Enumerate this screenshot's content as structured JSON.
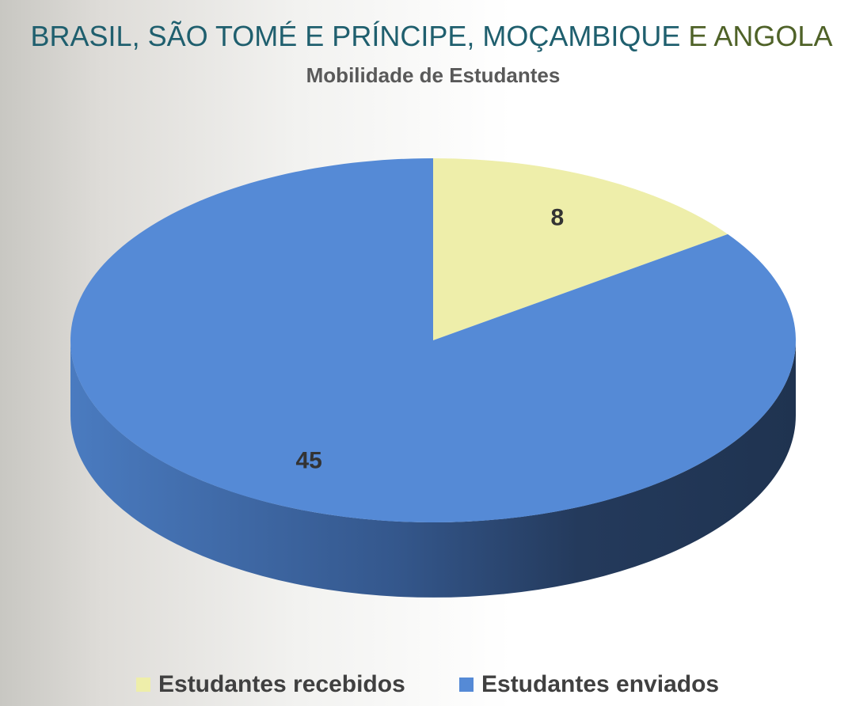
{
  "chart_data": {
    "type": "pie3d",
    "title": [
      "BRASIL, SÃO TOMÉ E PRÍNCIPE, MOÇAMBIQUE",
      "E ANGOLA"
    ],
    "title_colors": [
      "#1f5f6e",
      "#4f6228"
    ],
    "subtitle": "Mobilidade de Estudantes",
    "categories": [
      "Estudantes recebidos",
      "Estudantes enviados"
    ],
    "values": [
      8,
      45
    ],
    "colors": [
      "#eeeeaa",
      "#558ad6"
    ],
    "legend": "bottom"
  }
}
